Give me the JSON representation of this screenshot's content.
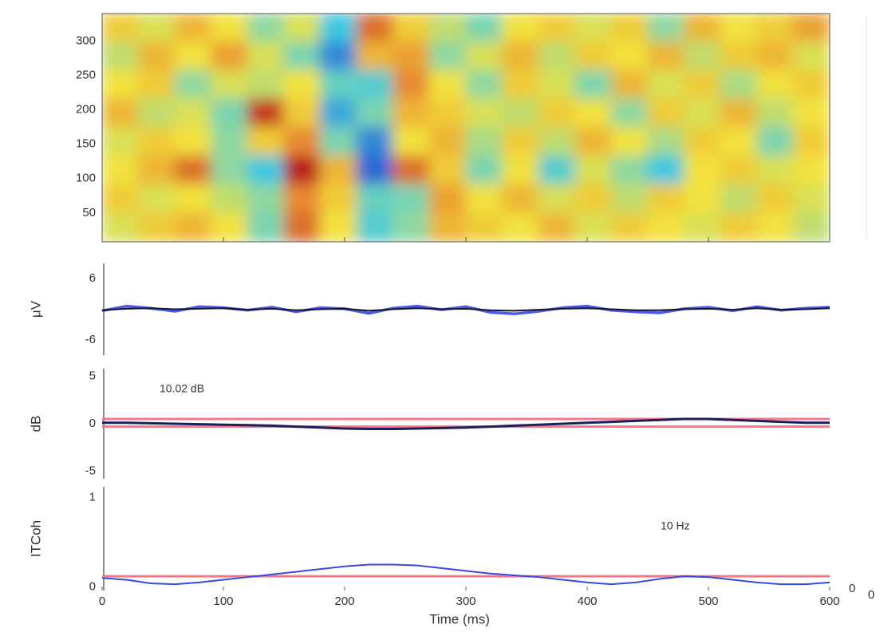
{
  "chart_data": [
    {
      "type": "heatmap",
      "xlim": [
        0,
        600
      ],
      "ylim": [
        8,
        340
      ],
      "xticks": [
        0,
        100,
        200,
        300,
        400,
        500,
        600
      ],
      "yticks": [
        50,
        100,
        150,
        200,
        250,
        300
      ],
      "clim": [
        -1,
        1
      ],
      "colormap": [
        "#2448d0",
        "#3ec8e0",
        "#8ed8a0",
        "#f2e23c",
        "#e88a30",
        "#b81c1c"
      ],
      "z": [
        [
          0.3,
          0.1,
          0.4,
          0.2,
          -0.2,
          0.1,
          -0.6,
          0.7,
          0.3,
          0.0,
          -0.3,
          0.2,
          0.3,
          0.1,
          0.3,
          -0.2,
          0.4,
          0.2,
          0.3,
          0.5
        ],
        [
          0.0,
          0.4,
          0.2,
          0.5,
          0.1,
          -0.3,
          -0.8,
          0.4,
          0.5,
          -0.2,
          0.1,
          0.4,
          0.0,
          0.3,
          0.2,
          0.4,
          0.0,
          0.3,
          0.4,
          0.1
        ],
        [
          0.2,
          0.3,
          -0.2,
          0.1,
          0.0,
          0.2,
          -0.4,
          -0.5,
          0.6,
          0.2,
          -0.2,
          0.3,
          0.1,
          -0.3,
          0.4,
          0.1,
          0.3,
          -0.1,
          0.2,
          0.3
        ],
        [
          0.4,
          0.0,
          0.1,
          -0.3,
          0.9,
          0.3,
          -0.7,
          -0.3,
          0.4,
          0.3,
          0.1,
          0.0,
          0.3,
          0.2,
          -0.2,
          0.3,
          0.1,
          0.4,
          0.0,
          0.2
        ],
        [
          0.1,
          0.3,
          0.2,
          -0.2,
          0.3,
          0.6,
          -0.3,
          -0.8,
          0.2,
          0.4,
          -0.1,
          0.3,
          0.0,
          0.4,
          0.2,
          -0.1,
          0.3,
          0.2,
          -0.3,
          0.3
        ],
        [
          0.2,
          0.4,
          0.7,
          -0.2,
          -0.6,
          1.0,
          0.4,
          -0.9,
          0.7,
          0.3,
          -0.3,
          0.2,
          -0.5,
          0.1,
          -0.2,
          -0.6,
          0.2,
          0.3,
          0.1,
          0.2
        ],
        [
          0.3,
          0.1,
          0.2,
          0.0,
          -0.2,
          0.6,
          0.3,
          -0.4,
          -0.3,
          0.5,
          0.2,
          0.4,
          0.1,
          0.3,
          0.0,
          0.3,
          0.2,
          0.0,
          0.3,
          0.1
        ],
        [
          0.1,
          0.3,
          0.4,
          0.2,
          -0.3,
          0.7,
          0.2,
          -0.5,
          -0.2,
          0.4,
          0.3,
          0.2,
          0.4,
          0.1,
          0.3,
          0.2,
          0.1,
          0.3,
          0.2,
          0.0
        ]
      ]
    },
    {
      "type": "line",
      "y_label": "μV",
      "xlim": [
        0,
        600
      ],
      "ylim": [
        -9,
        9
      ],
      "yticks": [
        -6,
        6
      ],
      "x": [
        0,
        20,
        40,
        60,
        80,
        100,
        120,
        140,
        160,
        180,
        200,
        220,
        240,
        260,
        280,
        300,
        320,
        340,
        360,
        380,
        400,
        420,
        440,
        460,
        480,
        500,
        520,
        540,
        560,
        580,
        600
      ],
      "series": [
        {
          "color": "#4a5ae8",
          "width": 3.5,
          "values": [
            -0.3,
            0.6,
            0.2,
            -0.4,
            0.5,
            0.3,
            -0.2,
            0.4,
            -0.5,
            0.3,
            0.1,
            -0.8,
            0.2,
            0.6,
            -0.1,
            0.5,
            -0.6,
            -0.9,
            -0.4,
            0.3,
            0.6,
            -0.2,
            -0.5,
            -0.7,
            0.1,
            0.4,
            -0.3,
            0.5,
            -0.2,
            0.2,
            0.4
          ]
        },
        {
          "color": "#141428",
          "width": 2,
          "values": [
            -0.2,
            0.1,
            0.2,
            0.0,
            0.1,
            0.2,
            -0.1,
            0.1,
            -0.2,
            0.0,
            0.1,
            -0.3,
            0.0,
            0.2,
            0.0,
            0.1,
            -0.2,
            -0.3,
            -0.1,
            0.1,
            0.2,
            0.0,
            -0.2,
            -0.2,
            0.0,
            0.1,
            -0.1,
            0.2,
            -0.1,
            0.0,
            0.2
          ]
        }
      ]
    },
    {
      "type": "line",
      "y_label": "dB",
      "annotation": "10.02 dB",
      "xlim": [
        0,
        600
      ],
      "ylim": [
        -5.8,
        5.8
      ],
      "yticks": [
        -5,
        0,
        5
      ],
      "hlines": [
        {
          "value": 0.5,
          "color": "#f07a8a"
        },
        {
          "value": -0.3,
          "color": "#f07a8a"
        }
      ],
      "x": [
        0,
        20,
        40,
        60,
        80,
        100,
        120,
        140,
        160,
        180,
        200,
        220,
        240,
        260,
        280,
        300,
        320,
        340,
        360,
        380,
        400,
        420,
        440,
        460,
        480,
        500,
        520,
        540,
        560,
        580,
        600
      ],
      "series": [
        {
          "color": "#1e1e5a",
          "width": 3,
          "values": [
            0.1,
            0.1,
            0.05,
            0,
            -0.05,
            -0.1,
            -0.15,
            -0.2,
            -0.3,
            -0.4,
            -0.5,
            -0.55,
            -0.55,
            -0.5,
            -0.45,
            -0.4,
            -0.3,
            -0.2,
            -0.1,
            0,
            0.1,
            0.2,
            0.3,
            0.4,
            0.5,
            0.5,
            0.4,
            0.3,
            0.2,
            0.1,
            0.1
          ]
        }
      ]
    },
    {
      "type": "line",
      "y_label": "ITCoh",
      "annotation": "10 Hz",
      "x_label": "Time (ms)",
      "side_labels": [
        "0",
        "0"
      ],
      "xlim": [
        0,
        600
      ],
      "ylim": [
        -0.04,
        1.12
      ],
      "yticks": [
        0,
        1
      ],
      "xticks": [
        0,
        100,
        200,
        300,
        400,
        500,
        600
      ],
      "hlines": [
        {
          "value": 0.12,
          "color": "#f07a8a"
        }
      ],
      "x": [
        0,
        20,
        40,
        60,
        80,
        100,
        120,
        140,
        160,
        180,
        200,
        220,
        240,
        260,
        280,
        300,
        320,
        340,
        360,
        380,
        400,
        420,
        440,
        460,
        480,
        500,
        520,
        540,
        560,
        580,
        600
      ],
      "series": [
        {
          "color": "#3a48e0",
          "width": 2,
          "values": [
            0.1,
            0.08,
            0.04,
            0.03,
            0.05,
            0.08,
            0.11,
            0.14,
            0.17,
            0.2,
            0.23,
            0.25,
            0.25,
            0.24,
            0.21,
            0.18,
            0.15,
            0.13,
            0.11,
            0.08,
            0.05,
            0.03,
            0.05,
            0.09,
            0.12,
            0.11,
            0.08,
            0.05,
            0.03,
            0.03,
            0.05
          ]
        }
      ]
    }
  ]
}
